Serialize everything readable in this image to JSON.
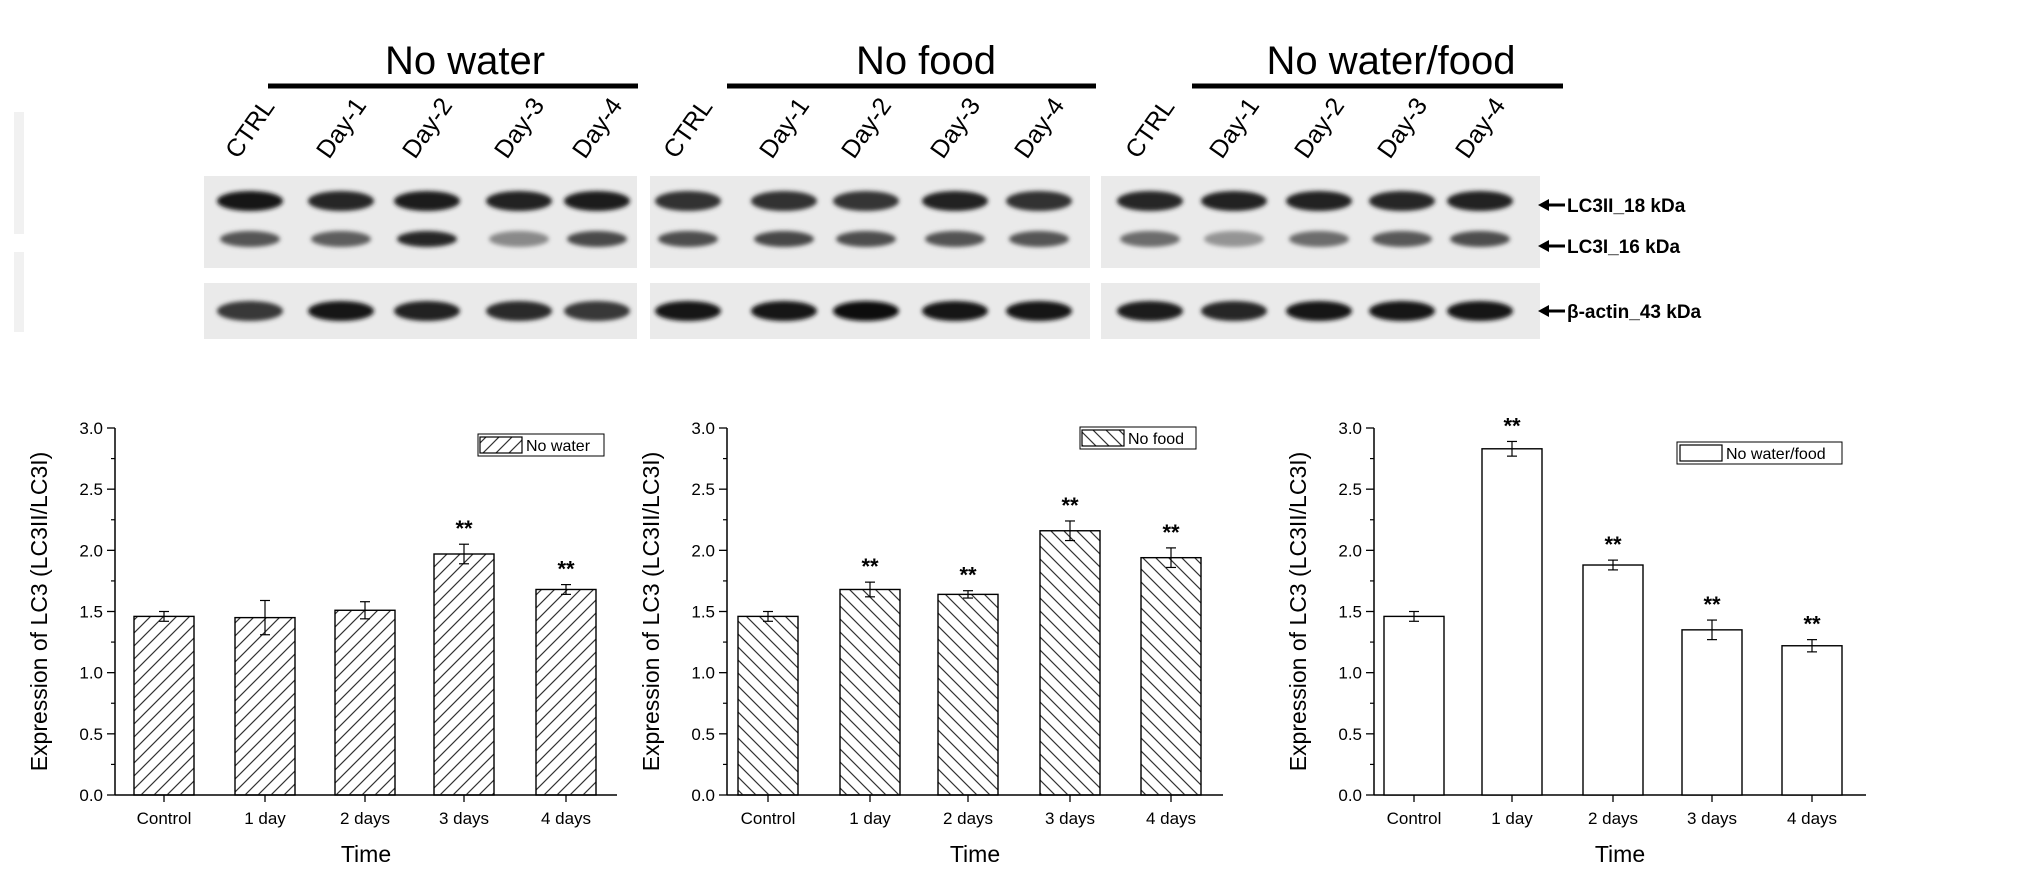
{
  "blot": {
    "lanes": [
      "CTRL",
      "Day-1",
      "Day-2",
      "Day-3",
      "Day-4"
    ],
    "panels": [
      {
        "title": "No water",
        "upper": [
          0.96,
          0.88,
          0.92,
          0.9,
          0.94
        ],
        "lower": [
          0.62,
          0.58,
          0.88,
          0.34,
          0.68
        ],
        "actin": [
          0.78,
          0.95,
          0.9,
          0.85,
          0.78
        ]
      },
      {
        "title": "No food",
        "upper": [
          0.82,
          0.82,
          0.8,
          0.9,
          0.82
        ],
        "lower": [
          0.66,
          0.7,
          0.66,
          0.64,
          0.62
        ],
        "actin": [
          0.98,
          0.98,
          1.0,
          0.98,
          0.98
        ]
      },
      {
        "title": "No water/food",
        "upper": [
          0.88,
          0.9,
          0.9,
          0.88,
          0.9
        ],
        "lower": [
          0.5,
          0.28,
          0.5,
          0.6,
          0.66
        ],
        "actin": [
          0.92,
          0.88,
          0.95,
          0.98,
          0.95
        ]
      }
    ],
    "markers": [
      "LC3II_18 kDa",
      "LC3I_16 kDa",
      "β-actin_43 kDa"
    ]
  },
  "chart_data": [
    {
      "type": "bar",
      "categories": [
        "Control",
        "1 day",
        "2 days",
        "3 days",
        "4 days"
      ],
      "series": [
        {
          "name": "No water",
          "values": [
            1.46,
            1.45,
            1.51,
            1.97,
            1.68
          ],
          "errors": [
            0.04,
            0.14,
            0.07,
            0.08,
            0.04
          ],
          "significance": [
            "",
            "",
            "",
            "**",
            "**"
          ]
        }
      ],
      "xlabel": "Time",
      "ylabel": "Expression of LC3 (LC3II/LC3I)",
      "ylim": [
        0,
        3.0
      ],
      "yticks": [
        "0.0",
        "0.5",
        "1.0",
        "1.5",
        "2.0",
        "2.5",
        "3.0"
      ],
      "pattern": "diagonal-up",
      "legend": "top-right",
      "grid": false
    },
    {
      "type": "bar",
      "categories": [
        "Control",
        "1 day",
        "2 days",
        "3 days",
        "4 days"
      ],
      "series": [
        {
          "name": "No food",
          "values": [
            1.46,
            1.68,
            1.64,
            2.16,
            1.94
          ],
          "errors": [
            0.04,
            0.06,
            0.03,
            0.08,
            0.08
          ],
          "significance": [
            "",
            "**",
            "**",
            "**",
            "**"
          ]
        }
      ],
      "xlabel": "Time",
      "ylabel": "Expression of LC3 (LC3II/LC3I)",
      "ylim": [
        0,
        3.0
      ],
      "yticks": [
        "0.0",
        "0.5",
        "1.0",
        "1.5",
        "2.0",
        "2.5",
        "3.0"
      ],
      "pattern": "diagonal-down",
      "legend": "top-right",
      "grid": false
    },
    {
      "type": "bar",
      "categories": [
        "Control",
        "1 day",
        "2 days",
        "3 days",
        "4 days"
      ],
      "series": [
        {
          "name": "No water/food",
          "values": [
            1.46,
            2.83,
            1.88,
            1.35,
            1.22
          ],
          "errors": [
            0.04,
            0.06,
            0.04,
            0.08,
            0.05
          ],
          "significance": [
            "",
            "**",
            "**",
            "**",
            "**"
          ]
        }
      ],
      "xlabel": "Time",
      "ylabel": "Expression of LC3 (LC3II/LC3I)",
      "ylim": [
        0,
        3.0
      ],
      "yticks": [
        "0.0",
        "0.5",
        "1.0",
        "1.5",
        "2.0",
        "2.5",
        "3.0"
      ],
      "pattern": "none",
      "legend": "top-right",
      "grid": false
    }
  ]
}
